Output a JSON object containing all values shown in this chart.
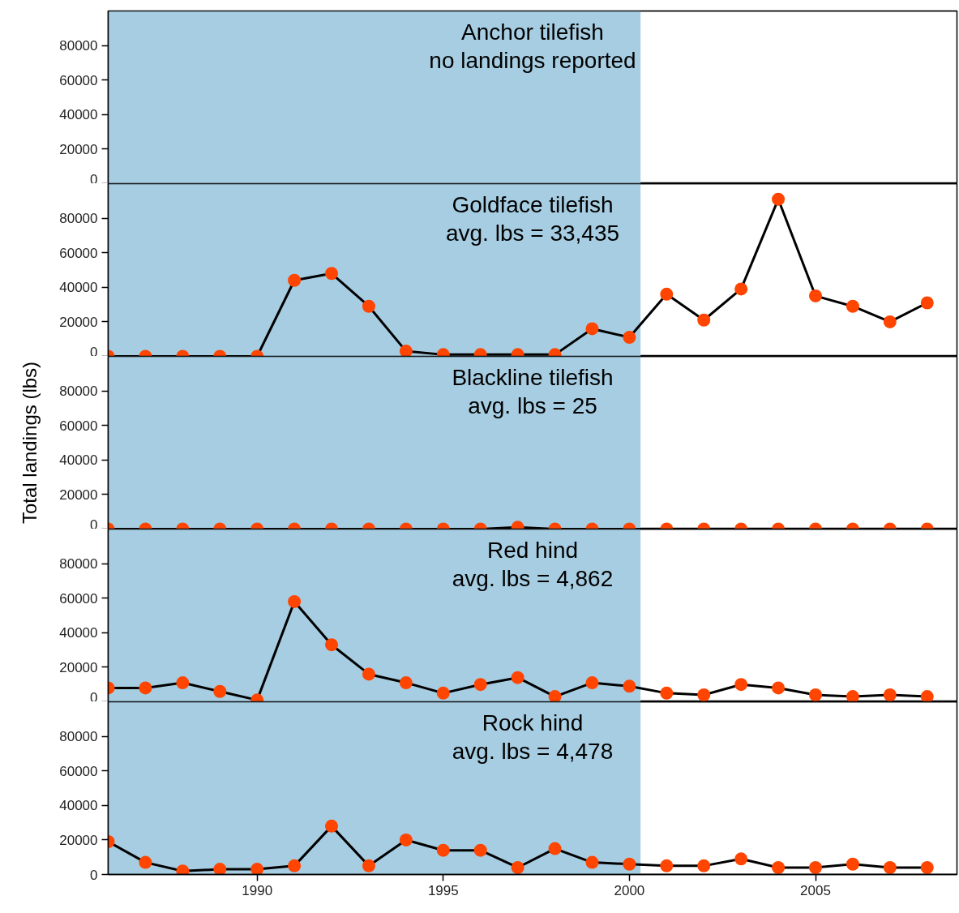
{
  "chart_data": [
    {
      "type": "line",
      "title": "Anchor tilefish",
      "subtitle": "no landings reported",
      "xlim": [
        1986,
        2008.8
      ],
      "xticks": [
        1990,
        1995,
        2000,
        2005
      ],
      "ylim": [
        0,
        100000
      ],
      "yticks": [
        0,
        20000,
        40000,
        60000,
        80000
      ],
      "tick_labels": "y",
      "bands": [
        {
          "axis": "x",
          "from": 1986,
          "to": 2000.3,
          "color": "#a6cde2"
        }
      ]
    },
    {
      "type": "line",
      "title": "Goldface tilefish",
      "subtitle": "avg. lbs = 33,435",
      "x": [
        1986,
        1987,
        1988,
        1989,
        1990,
        1991,
        1992,
        1993,
        1994,
        1995,
        1996,
        1997,
        1998,
        1999,
        2000,
        2001,
        2002,
        2003,
        2004,
        2005,
        2006,
        2007,
        2008
      ],
      "values": [
        0,
        0,
        0,
        0,
        0,
        44000,
        48000,
        29000,
        3000,
        1000,
        1000,
        1000,
        1000,
        16000,
        11000,
        36000,
        21000,
        39000,
        91000,
        35000,
        29000,
        20000,
        31000
      ],
      "color": "#ff4500",
      "marker": "circle",
      "xlim": [
        1986,
        2008.8
      ],
      "xticks": [
        1990,
        1995,
        2000,
        2005
      ],
      "ylim": [
        0,
        100000
      ],
      "yticks": [
        0,
        20000,
        40000,
        60000,
        80000
      ],
      "tick_labels": "y",
      "bands": [
        {
          "axis": "x",
          "from": 1986,
          "to": 2000.3,
          "color": "#a6cde2"
        }
      ]
    },
    {
      "type": "line",
      "title": "Blackline tilefish",
      "subtitle": "avg. lbs = 25",
      "ylabel": "Total landings (lbs)",
      "x": [
        1986,
        1987,
        1988,
        1989,
        1990,
        1991,
        1992,
        1993,
        1994,
        1995,
        1996,
        1997,
        1998,
        1999,
        2000,
        2001,
        2002,
        2003,
        2004,
        2005,
        2006,
        2007,
        2008
      ],
      "values": [
        0,
        0,
        0,
        0,
        0,
        0,
        0,
        0,
        0,
        0,
        0,
        1000,
        0,
        0,
        0,
        0,
        0,
        0,
        0,
        0,
        0,
        0,
        0
      ],
      "color": "#ff4500",
      "marker": "circle",
      "xlim": [
        1986,
        2008.8
      ],
      "xticks": [
        1990,
        1995,
        2000,
        2005
      ],
      "ylim": [
        0,
        100000
      ],
      "yticks": [
        0,
        20000,
        40000,
        60000,
        80000
      ],
      "tick_labels": "y",
      "bands": [
        {
          "axis": "x",
          "from": 1986,
          "to": 2000.3,
          "color": "#a6cde2"
        }
      ]
    },
    {
      "type": "line",
      "title": "Red hind",
      "subtitle": "avg. lbs = 4,862",
      "x": [
        1986,
        1987,
        1988,
        1989,
        1990,
        1991,
        1992,
        1993,
        1994,
        1995,
        1996,
        1997,
        1998,
        1999,
        2000,
        2001,
        2002,
        2003,
        2004,
        2005,
        2006,
        2007,
        2008
      ],
      "values": [
        8000,
        8000,
        11000,
        6000,
        1000,
        58000,
        33000,
        16000,
        11000,
        5000,
        10000,
        14000,
        3000,
        11000,
        9000,
        5000,
        4000,
        10000,
        8000,
        4000,
        3000,
        4000,
        3000
      ],
      "color": "#ff4500",
      "marker": "circle",
      "xlim": [
        1986,
        2008.8
      ],
      "xticks": [
        1990,
        1995,
        2000,
        2005
      ],
      "ylim": [
        0,
        100000
      ],
      "yticks": [
        0,
        20000,
        40000,
        60000,
        80000
      ],
      "tick_labels": "y",
      "bands": [
        {
          "axis": "x",
          "from": 1986,
          "to": 2000.3,
          "color": "#a6cde2"
        }
      ]
    },
    {
      "type": "line",
      "title": "Rock hind",
      "subtitle": "avg. lbs = 4,478",
      "x": [
        1986,
        1987,
        1988,
        1989,
        1990,
        1991,
        1992,
        1993,
        1994,
        1995,
        1996,
        1997,
        1998,
        1999,
        2000,
        2001,
        2002,
        2003,
        2004,
        2005,
        2006,
        2007,
        2008
      ],
      "values": [
        19000,
        7000,
        2000,
        3000,
        3000,
        5000,
        28000,
        5000,
        20000,
        14000,
        14000,
        4000,
        15000,
        7000,
        6000,
        5000,
        5000,
        9000,
        4000,
        4000,
        6000,
        4000,
        4000
      ],
      "color": "#ff4500",
      "marker": "circle",
      "xlim": [
        1986,
        2008.8
      ],
      "xticks": [
        1990,
        1995,
        2000,
        2005
      ],
      "ylim": [
        0,
        100000
      ],
      "yticks": [
        0,
        20000,
        40000,
        60000,
        80000
      ],
      "bands": [
        {
          "axis": "x",
          "from": 1986,
          "to": 2000.3,
          "color": "#a6cde2"
        }
      ]
    }
  ]
}
